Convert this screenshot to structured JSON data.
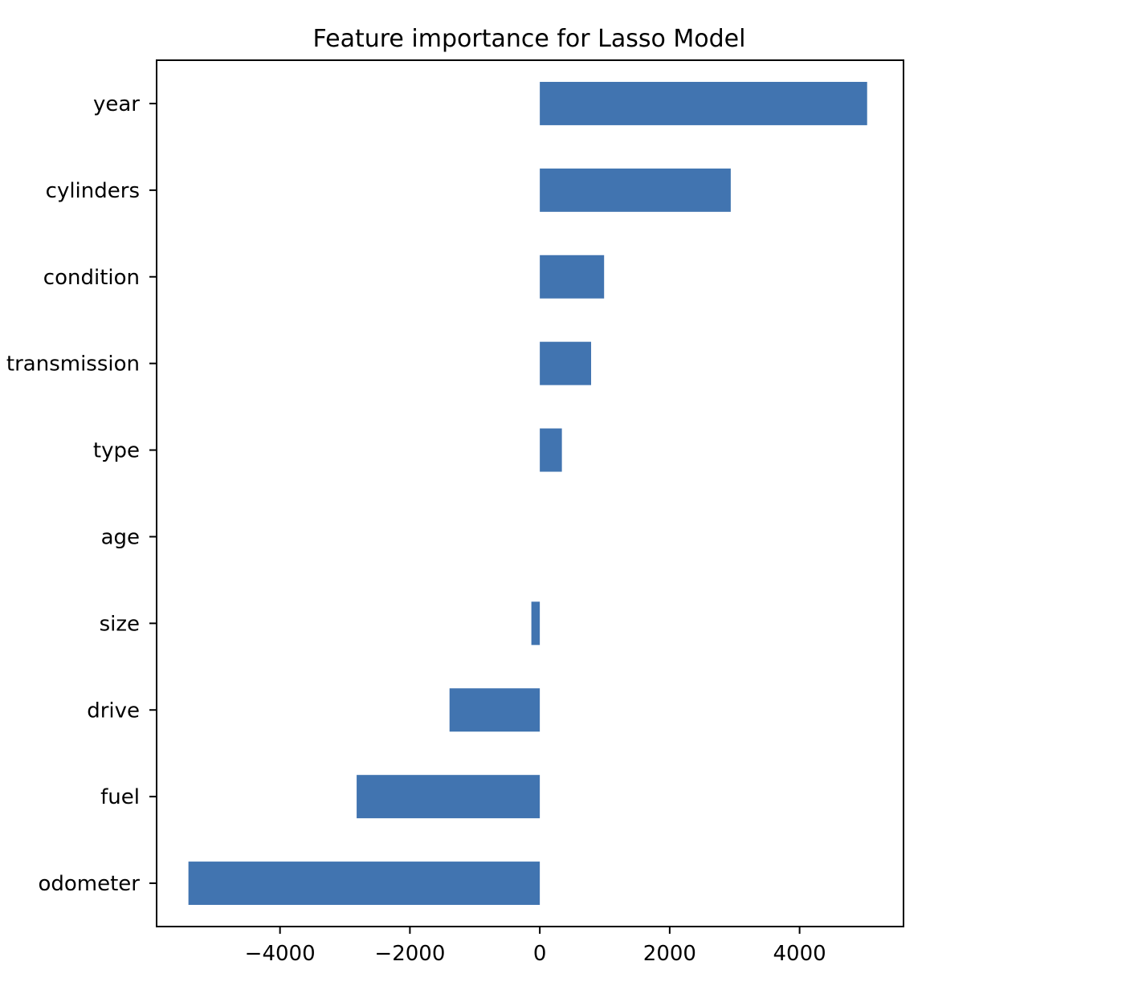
{
  "chart_data": {
    "type": "bar",
    "orientation": "horizontal",
    "title": "Feature importance for Lasso Model",
    "xlabel": "",
    "ylabel": "",
    "categories": [
      "year",
      "cylinders",
      "condition",
      "transmission",
      "type",
      "age",
      "size",
      "drive",
      "fuel",
      "odometer"
    ],
    "values": [
      5040,
      2940,
      990,
      790,
      340,
      0,
      -130,
      -1390,
      -2820,
      -5410
    ],
    "xlim": [
      -5900,
      5600
    ],
    "xticks": [
      -4000,
      -2000,
      0,
      2000,
      4000
    ],
    "xtick_labels": [
      "−4000",
      "−2000",
      "0",
      "2000",
      "4000"
    ],
    "bar_color": "#4174b0",
    "grid": false,
    "legend": "none"
  }
}
